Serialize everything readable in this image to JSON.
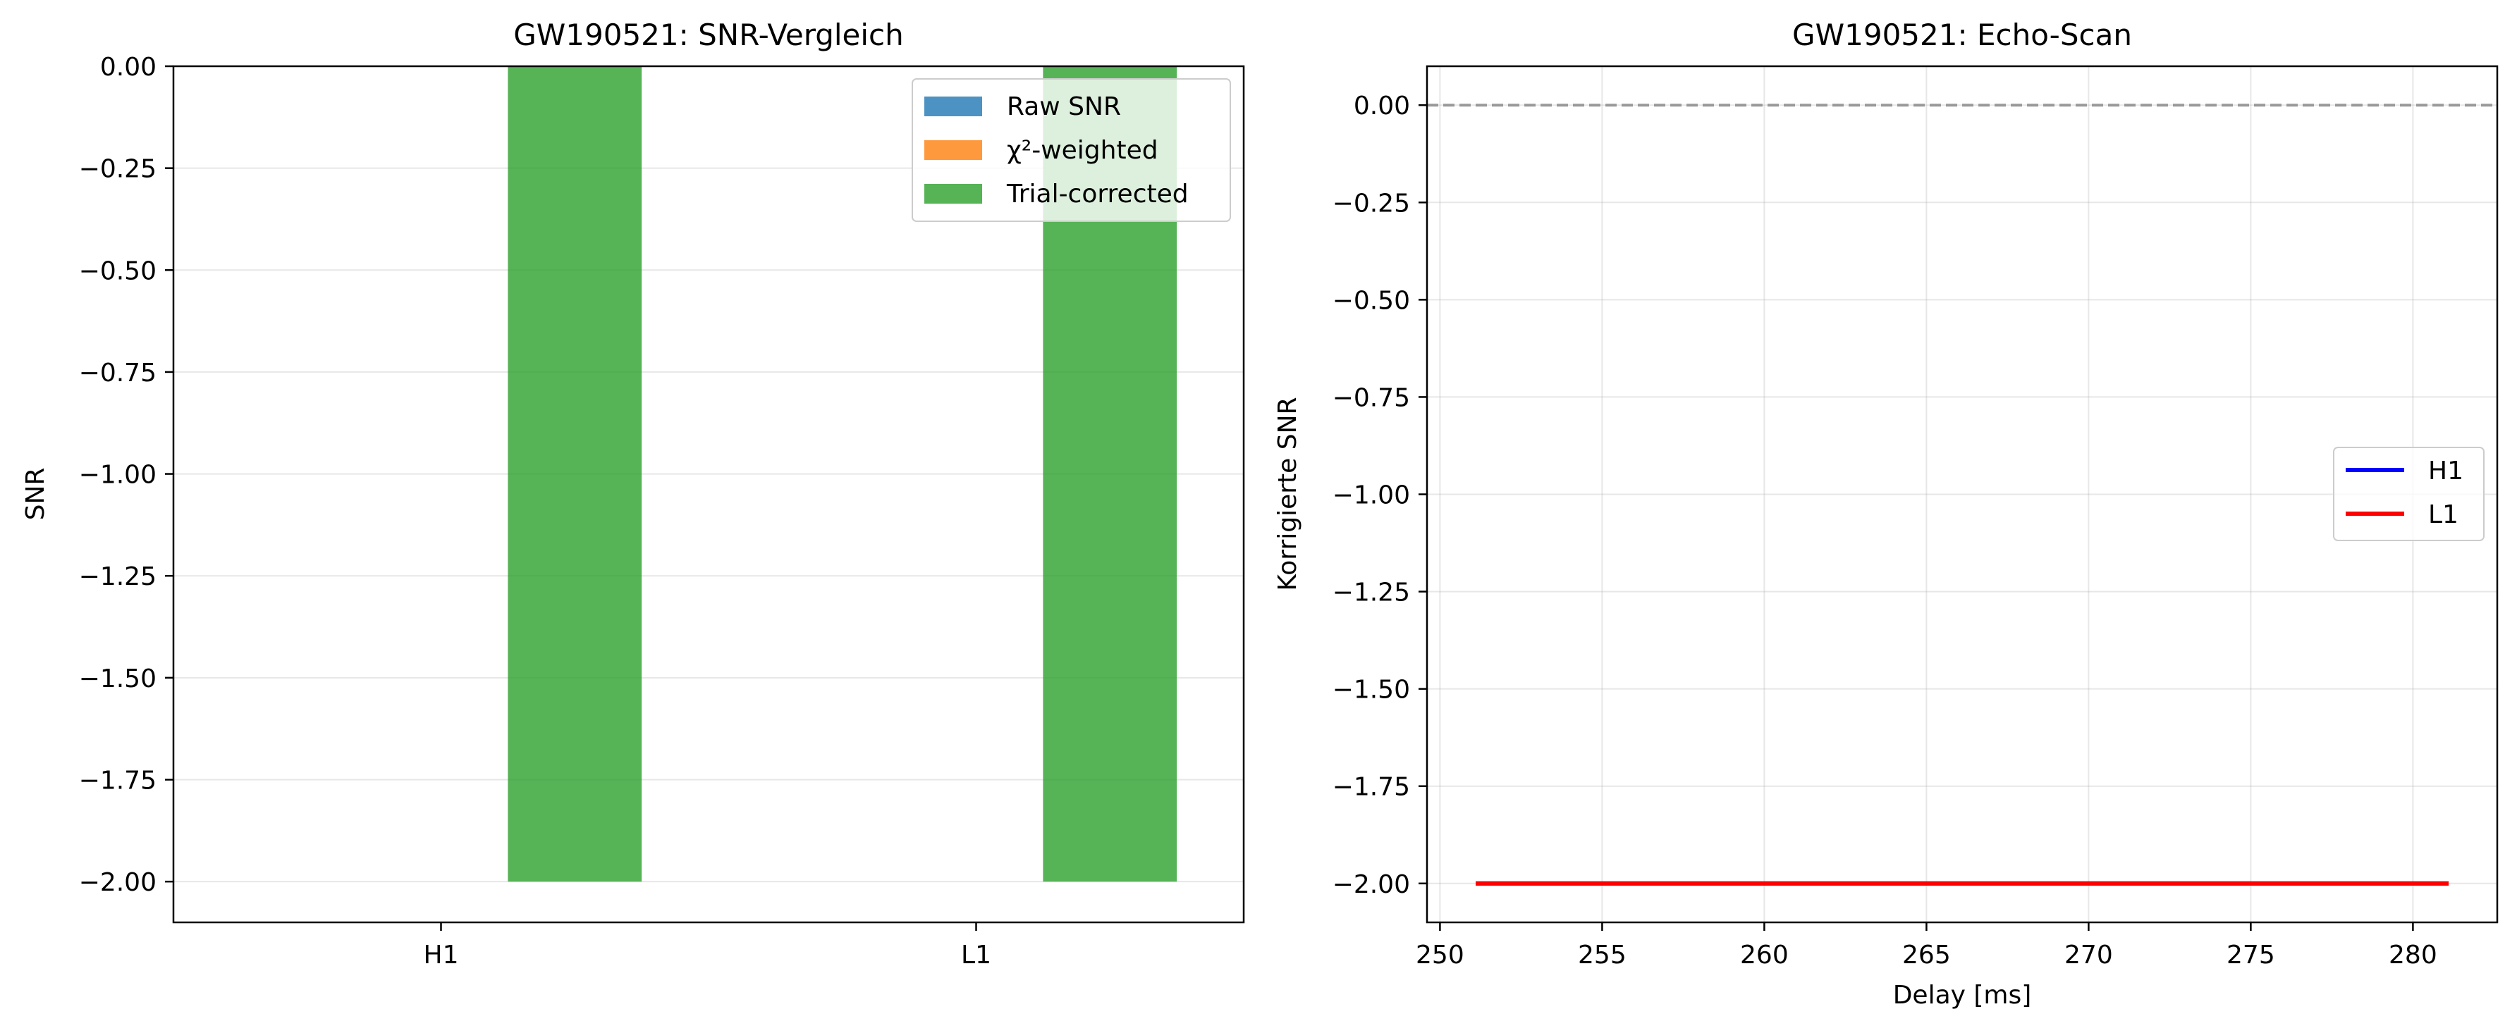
{
  "figure": {
    "background": "#ffffff"
  },
  "chart_data": [
    {
      "type": "bar",
      "title": "GW190521: SNR-Vergleich",
      "xlabel": "",
      "ylabel": "SNR",
      "categories": [
        "H1",
        "L1"
      ],
      "series": [
        {
          "name": "Raw SNR",
          "values": [
            0,
            0
          ],
          "color": "#1f77b4",
          "opacity": 0.8
        },
        {
          "name": "χ²-weighted",
          "values": [
            0,
            0
          ],
          "color": "#ff7f0e",
          "opacity": 0.8
        },
        {
          "name": "Trial-corrected",
          "values": [
            -2.0,
            -2.0
          ],
          "color": "#2ca02c",
          "opacity": 0.8
        }
      ],
      "ylim": [
        -2.1,
        0.0
      ],
      "yticks": [
        0.0,
        -0.25,
        -0.5,
        -0.75,
        -1.0,
        -1.25,
        -1.5,
        -1.75,
        -2.0
      ],
      "ytick_labels": [
        "0.00",
        "−0.25",
        "−0.50",
        "−0.75",
        "−1.00",
        "−1.25",
        "−1.50",
        "−1.75",
        "−2.00"
      ],
      "grid": "y",
      "legend": "top-right"
    },
    {
      "type": "line",
      "title": "GW190521: Echo-Scan",
      "xlabel": "Delay [ms]",
      "ylabel": "Korrigierte SNR",
      "series": [
        {
          "name": "H1",
          "x": [
            251.1,
            281.1
          ],
          "y": [
            -2.0,
            -2.0
          ],
          "color": "#0000ff"
        },
        {
          "name": "L1",
          "x": [
            251.1,
            281.1
          ],
          "y": [
            -2.0,
            -2.0
          ],
          "color": "#ff0000"
        }
      ],
      "reference_line": {
        "y": 0.0,
        "color": "#999999",
        "style": "dashed"
      },
      "xlim": [
        249.6,
        282.6
      ],
      "ylim": [
        -2.1,
        0.1
      ],
      "xticks": [
        250,
        255,
        260,
        265,
        270,
        275,
        280
      ],
      "xtick_labels": [
        "250",
        "255",
        "260",
        "265",
        "270",
        "275",
        "280"
      ],
      "yticks": [
        0.0,
        -0.25,
        -0.5,
        -0.75,
        -1.0,
        -1.25,
        -1.5,
        -1.75,
        -2.0
      ],
      "ytick_labels": [
        "0.00",
        "−0.25",
        "−0.50",
        "−0.75",
        "−1.00",
        "−1.25",
        "−1.50",
        "−1.75",
        "−2.00"
      ],
      "grid": "both",
      "legend": "center-right"
    }
  ]
}
